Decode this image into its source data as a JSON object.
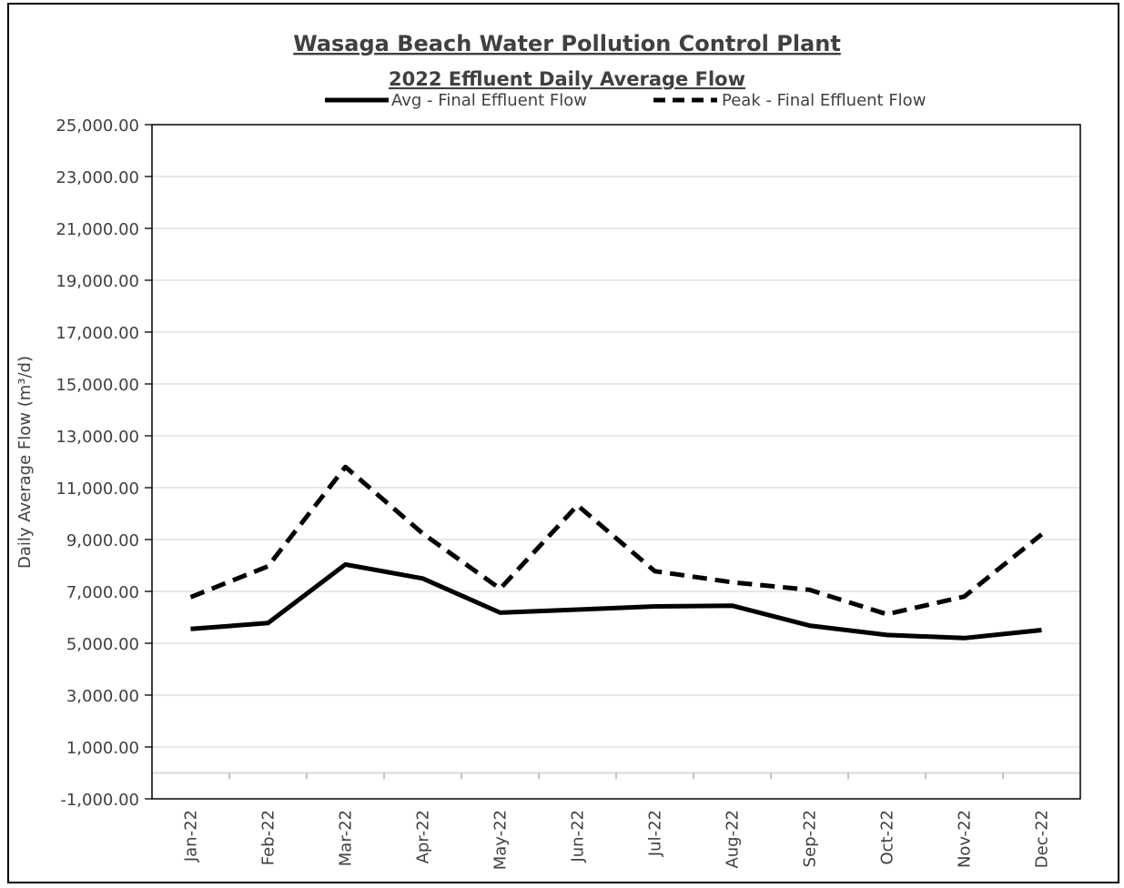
{
  "chart_data": {
    "type": "line",
    "title": "Wasaga Beach Water Pollution Control Plant",
    "subtitle": "2022 Effluent Daily Average Flow",
    "xlabel": "",
    "ylabel": "Daily Average Flow (m³/d)",
    "categories": [
      "Jan-22",
      "Feb-22",
      "Mar-22",
      "Apr-22",
      "May-22",
      "Jun-22",
      "Jul-22",
      "Aug-22",
      "Sep-22",
      "Oct-22",
      "Nov-22",
      "Dec-22"
    ],
    "ylim": [
      -1000,
      25000
    ],
    "yticks": [
      -1000,
      1000,
      3000,
      5000,
      7000,
      9000,
      11000,
      13000,
      15000,
      17000,
      19000,
      21000,
      23000,
      25000
    ],
    "ytick_labels": [
      "-1,000.00",
      "1,000.00",
      "3,000.00",
      "5,000.00",
      "7,000.00",
      "9,000.00",
      "11,000.00",
      "13,000.00",
      "15,000.00",
      "17,000.00",
      "19,000.00",
      "21,000.00",
      "23,000.00",
      "25,000.00"
    ],
    "grid": true,
    "legend_position": "top",
    "series": [
      {
        "name": "Avg - Final Effluent Flow",
        "style": "solid",
        "color": "#000000",
        "values": [
          5550,
          5780,
          8040,
          7500,
          6180,
          6300,
          6420,
          6450,
          5680,
          5320,
          5200,
          5510
        ]
      },
      {
        "name": "Peak - Final Effluent Flow",
        "style": "dashed",
        "color": "#000000",
        "values": [
          6780,
          7970,
          11800,
          9230,
          7100,
          10320,
          7780,
          7350,
          7060,
          6120,
          6800,
          9200
        ]
      }
    ]
  }
}
